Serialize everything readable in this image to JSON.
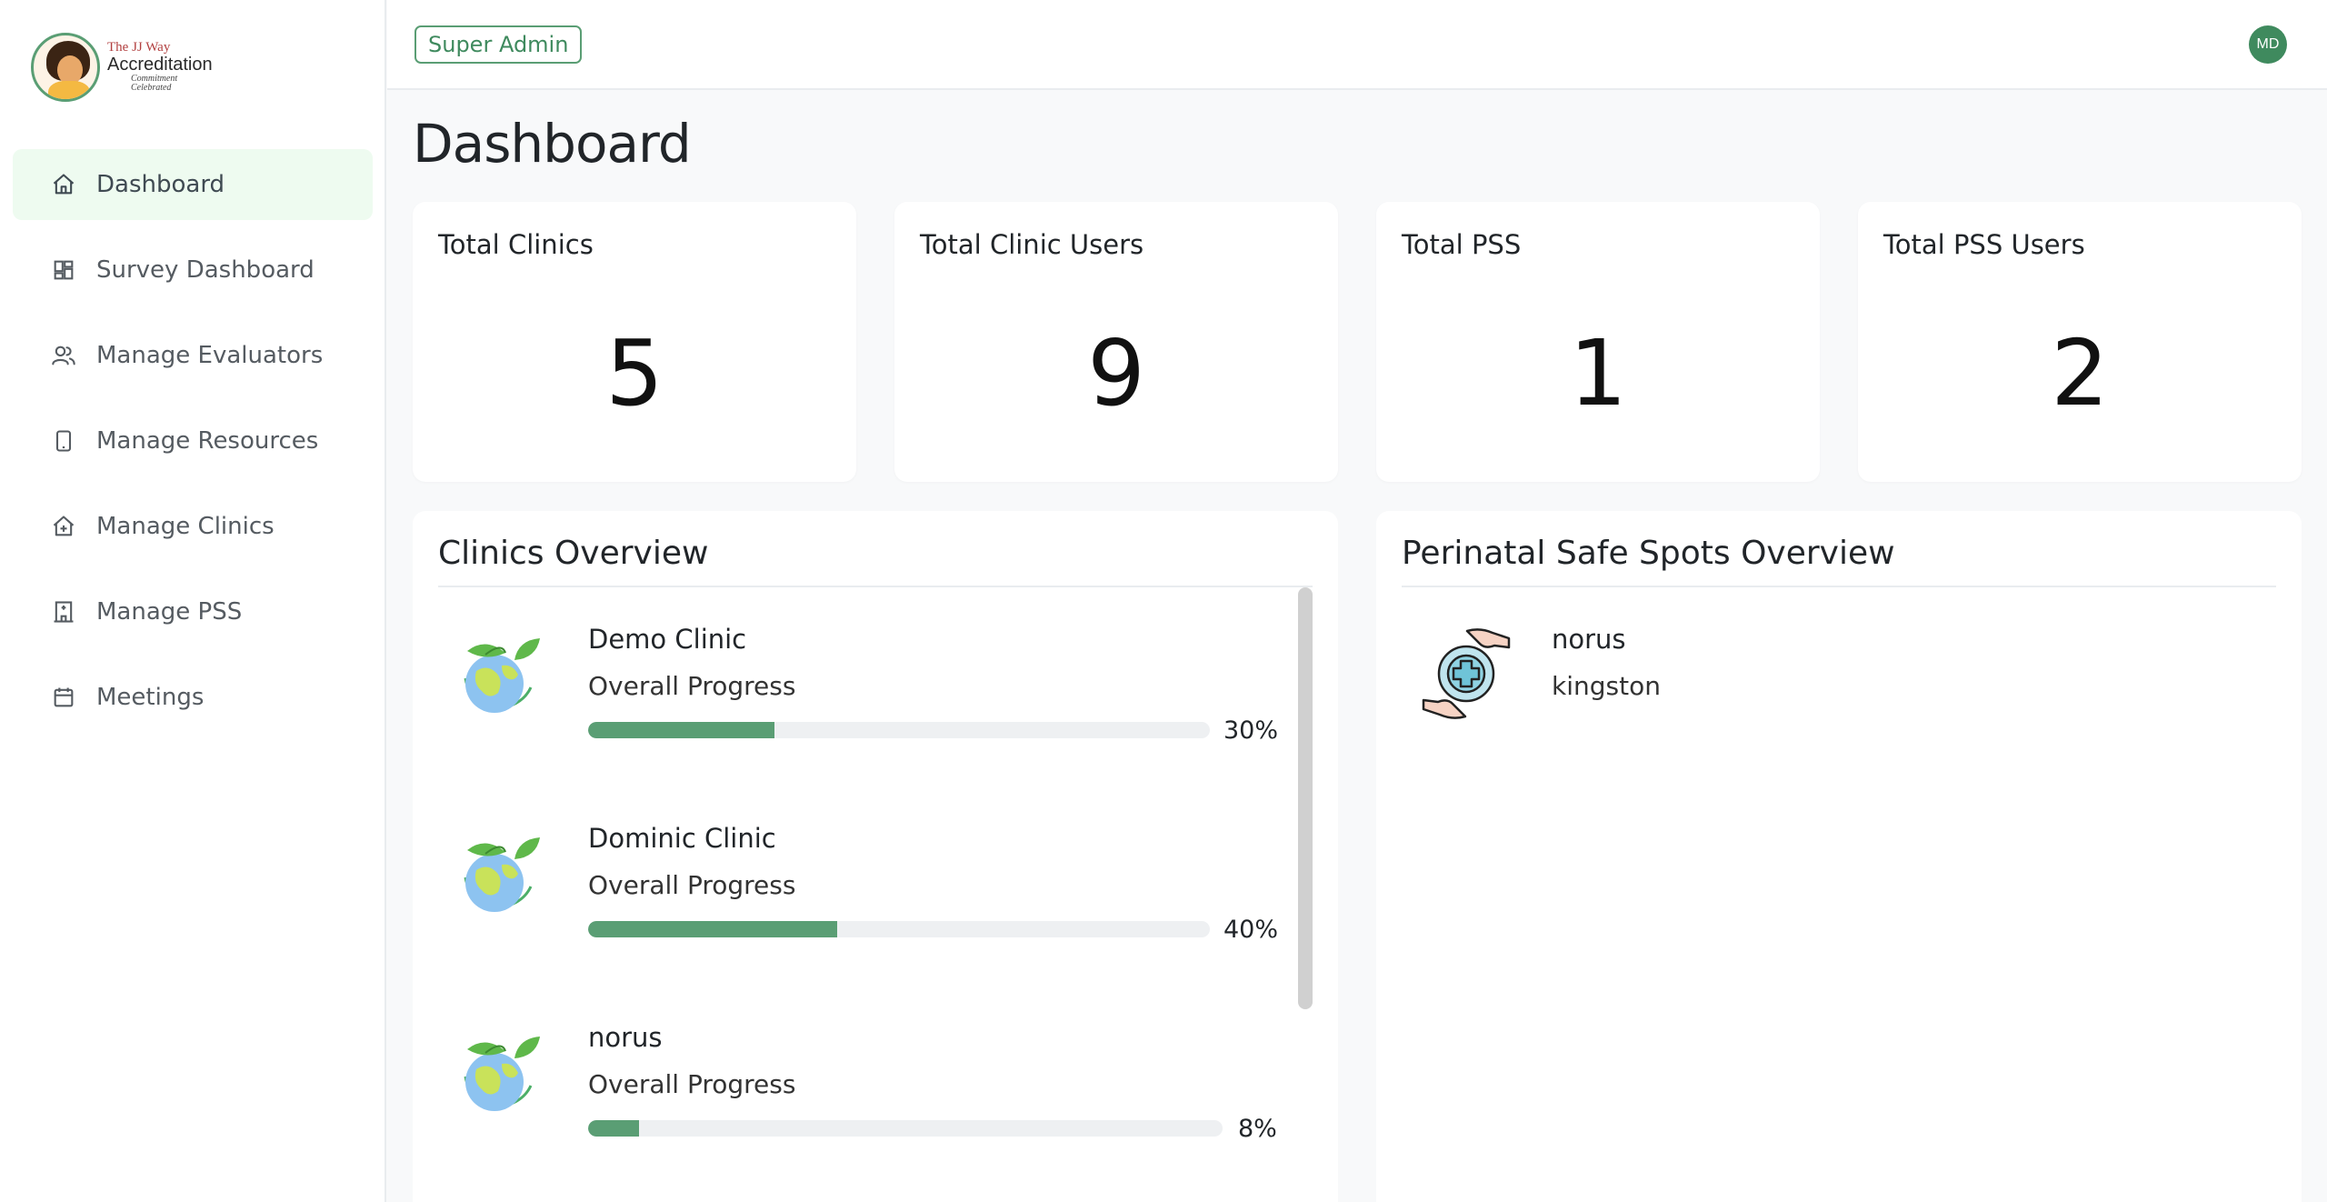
{
  "logo": {
    "line1": "The JJ Way",
    "line2": "Accreditation",
    "line3": "Commitment Celebrated"
  },
  "sidebar": {
    "items": [
      {
        "label": "Dashboard",
        "icon": "home-icon",
        "active": true
      },
      {
        "label": "Survey Dashboard",
        "icon": "grid-icon"
      },
      {
        "label": "Manage Evaluators",
        "icon": "users-icon"
      },
      {
        "label": "Manage Resources",
        "icon": "tablet-icon"
      },
      {
        "label": "Manage Clinics",
        "icon": "clinic-icon"
      },
      {
        "label": "Manage PSS",
        "icon": "building-icon"
      },
      {
        "label": "Meetings",
        "icon": "calendar-icon"
      }
    ]
  },
  "header": {
    "role": "Super Admin",
    "avatar_initials": "MD"
  },
  "page": {
    "title": "Dashboard"
  },
  "stats": [
    {
      "label": "Total Clinics",
      "value": "5"
    },
    {
      "label": "Total Clinic Users",
      "value": "9"
    },
    {
      "label": "Total PSS",
      "value": "1"
    },
    {
      "label": "Total PSS Users",
      "value": "2"
    }
  ],
  "clinics_overview": {
    "title": "Clinics Overview",
    "items": [
      {
        "name": "Demo Clinic",
        "subtitle": "Overall Progress",
        "progress": 30,
        "progress_label": "30%"
      },
      {
        "name": "Dominic Clinic",
        "subtitle": "Overall Progress",
        "progress": 40,
        "progress_label": "40%"
      },
      {
        "name": "norus",
        "subtitle": "Overall Progress",
        "progress": 8,
        "progress_label": "8%"
      }
    ]
  },
  "pss_overview": {
    "title": "Perinatal Safe Spots Overview",
    "items": [
      {
        "name": "norus",
        "location": "kingston"
      }
    ]
  },
  "colors": {
    "accent": "#5a9e74",
    "active_bg": "#eefbf0",
    "track": "#eef0f2"
  }
}
